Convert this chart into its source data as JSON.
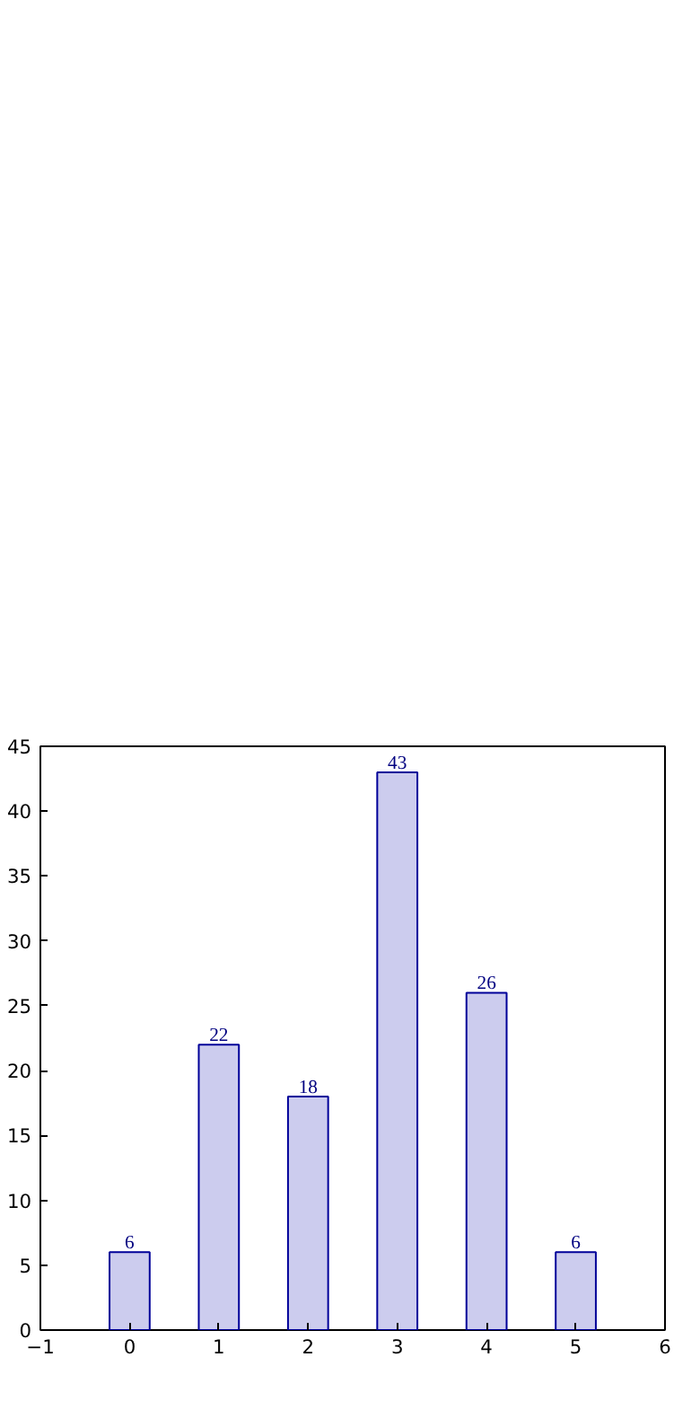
{
  "chart_data": {
    "type": "bar",
    "x": [
      0,
      1,
      2,
      3,
      4,
      5
    ],
    "values": [
      6,
      22,
      18,
      43,
      26,
      6
    ],
    "color": "#ccccee",
    "xlim": [
      -1,
      6
    ],
    "xticks": [
      -1,
      0,
      1,
      2,
      3,
      4,
      5,
      6
    ],
    "ylim": [
      0,
      45
    ],
    "yticks": [
      0,
      5,
      10,
      15,
      20,
      25,
      30,
      35,
      40,
      45
    ],
    "data_labels": true,
    "grid": false
  }
}
